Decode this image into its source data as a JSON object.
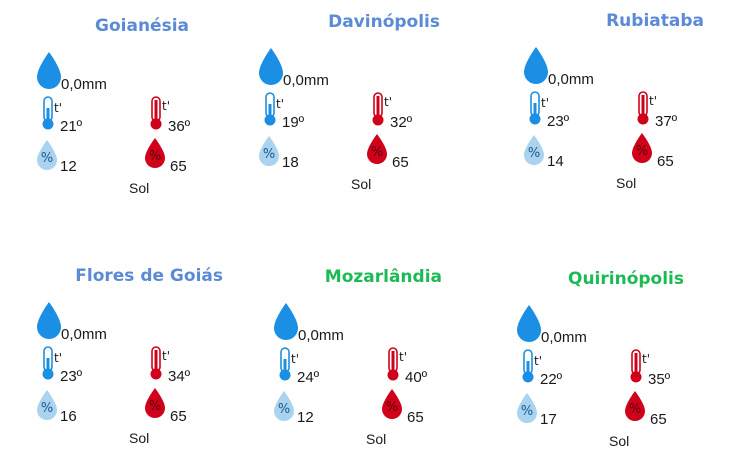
{
  "colors": {
    "title_blue": "#5b8ad6",
    "title_green": "#1db954",
    "drop_blue": "#1a8fe3",
    "drop_light": "#a9d3ef",
    "thermo_blue": "#1a8fe3",
    "thermo_red": "#d0021b"
  },
  "cities": [
    {
      "name": "Goianésia",
      "title_color": "#5b8ad6",
      "rain": "0,0mm",
      "tmin": "21º",
      "tmax": "36º",
      "hmin": "12",
      "hmax": "65",
      "condition": "Sol",
      "t_symbol": "t'"
    },
    {
      "name": "Davinópolis",
      "title_color": "#5b8ad6",
      "rain": "0,0mm",
      "tmin": "19º",
      "tmax": "32º",
      "hmin": "18",
      "hmax": "65",
      "condition": "Sol",
      "t_symbol": "t'"
    },
    {
      "name": "Rubiataba",
      "title_color": "#5b8ad6",
      "rain": "0,0mm",
      "tmin": "23º",
      "tmax": "37º",
      "hmin": "14",
      "hmax": "65",
      "condition": "Sol",
      "t_symbol": "t'"
    },
    {
      "name": "Flores de Goiás",
      "title_color": "#5b8ad6",
      "rain": "0,0mm",
      "tmin": "23º",
      "tmax": "34º",
      "hmin": "16",
      "hmax": "65",
      "condition": "Sol",
      "t_symbol": "t'"
    },
    {
      "name": "Mozarlândia",
      "title_color": "#1db954",
      "rain": "0,0mm",
      "tmin": "24º",
      "tmax": "40º",
      "hmin": "12",
      "hmax": "65",
      "condition": "Sol",
      "t_symbol": "t'"
    },
    {
      "name": "Quirinópolis",
      "title_color": "#1db954",
      "rain": "0,0mm",
      "tmin": "22º",
      "tmax": "35º",
      "hmin": "17",
      "hmax": "65",
      "condition": "Sol",
      "t_symbol": "t'"
    }
  ],
  "icons": {
    "rain": "raindrop-icon",
    "tmin": "thermometer-low-icon",
    "tmax": "thermometer-high-icon",
    "hmin": "humidity-low-icon",
    "hmax": "humidity-high-icon"
  }
}
